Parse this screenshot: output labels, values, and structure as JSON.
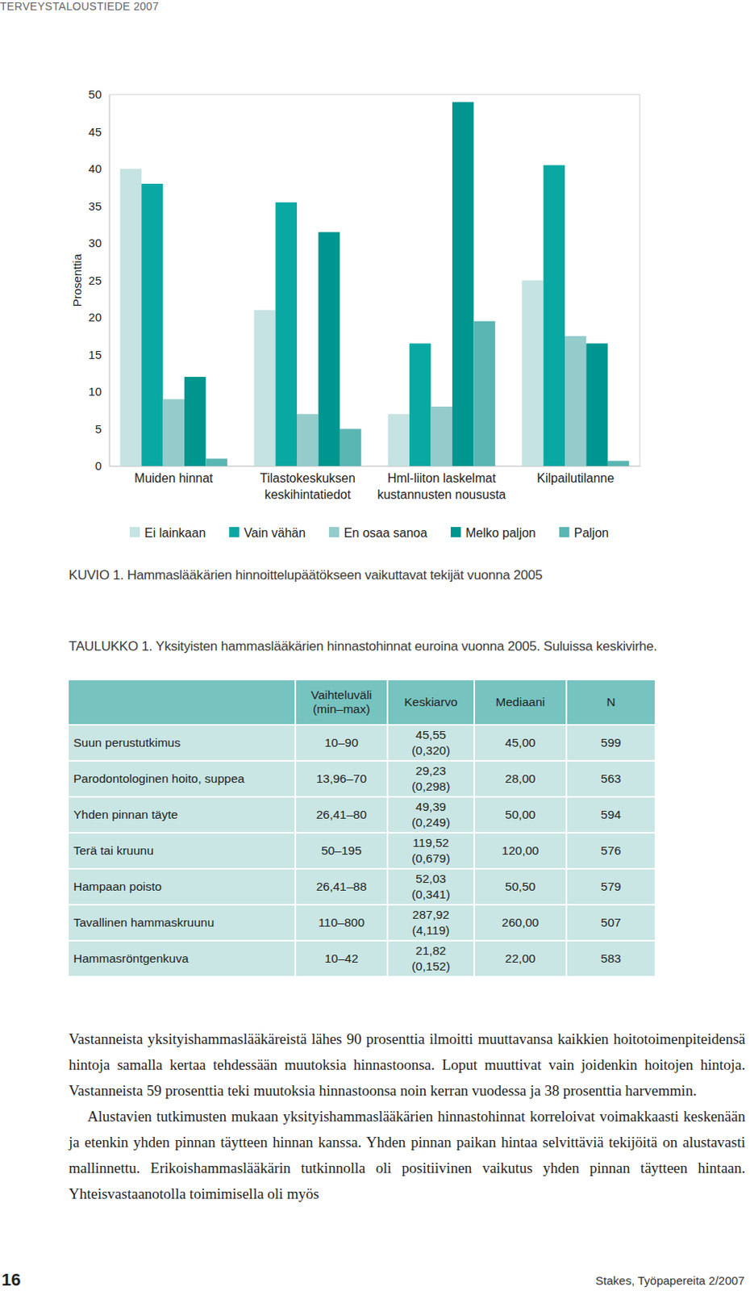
{
  "header": "TERVEYSTALOUSTIEDE 2007",
  "chart_data": {
    "type": "bar",
    "title": "KUVIO 1. Hammaslääkärien hinnoittelupäätökseen vaikuttavat tekijät vuonna 2005",
    "y_label": "Prosenttia",
    "categories": [
      "Muiden hinnat",
      "Tilastokeskuksen\nkeskihintatiedot",
      "Hml-liiton laskelmat\nkustannusten noususta",
      "Kilpailutilanne"
    ],
    "series": [
      {
        "name": "Ei lainkaan",
        "color": "#c5e3e2",
        "values": [
          40,
          21,
          7,
          25
        ]
      },
      {
        "name": "Vain vähän",
        "color": "#0aa8a2",
        "values": [
          38,
          35.5,
          16.5,
          40.5
        ]
      },
      {
        "name": "En osaa sanoa",
        "color": "#93cccb",
        "values": [
          9,
          7,
          8,
          17.5
        ]
      },
      {
        "name": "Melko paljon",
        "color": "#009690",
        "values": [
          12,
          31.5,
          49,
          16.5
        ]
      },
      {
        "name": "Paljon",
        "color": "#5ab6b3",
        "values": [
          1,
          5,
          19.5,
          0.7
        ]
      }
    ],
    "ylim": [
      0,
      50
    ],
    "yticks": [
      0,
      5,
      10,
      15,
      20,
      25,
      30,
      35,
      40,
      45,
      50
    ],
    "grid": false,
    "legend": "bottom"
  },
  "table": {
    "caption": "TAULUKKO 1. Yksityisten hammaslääkärien hinnastohinnat euroina vuonna 2005. Suluissa keskivirhe.",
    "columns": [
      "Vaihteluväli\n(min–max)",
      "Keskiarvo",
      "Mediaani",
      "N"
    ],
    "rows": [
      [
        "Suun perustutkimus",
        "10–90",
        "45,55",
        "(0,320)",
        "45,00",
        "599"
      ],
      [
        "Parodontologinen hoito, suppea",
        "13,96–70",
        "29,23",
        "(0,298)",
        "28,00",
        "563"
      ],
      [
        "Yhden pinnan täyte",
        "26,41–80",
        "49,39",
        "(0,249)",
        "50,00",
        "594"
      ],
      [
        "Terä tai kruunu",
        "50–195",
        "119,52",
        "(0,679)",
        "120,00",
        "576"
      ],
      [
        "Hampaan poisto",
        "26,41–88",
        "52,03",
        "(0,341)",
        "50,50",
        "579"
      ],
      [
        "Tavallinen hammaskruunu",
        "110–800",
        "287,92",
        "(4,119)",
        "260,00",
        "507"
      ],
      [
        "Hammasröntgenkuva",
        "10–42",
        "21,82",
        "(0,152)",
        "22,00",
        "583"
      ]
    ]
  },
  "paragraphs": [
    "Vastanneista yksityishammaslääkäreistä lähes 90 prosenttia ilmoitti muuttavansa kaikkien hoitotoimenpiteidensä hintoja samalla kertaa tehdessään muutoksia hinnastoonsa. Loput muuttivat vain joidenkin hoitojen hintoja. Vastanneista 59 prosenttia teki muutoksia hinnastoonsa noin kerran vuodessa ja 38 prosenttia harvemmin.",
    "Alustavien tutkimusten mukaan yksityishammaslääkärien hinnastohinnat korreloivat voimakkaasti keskenään ja etenkin yhden pinnan täytteen hinnan kanssa. Yhden pinnan paikan hintaa selvittäviä tekijöitä on alustavasti mallinnettu. Erikoishammaslääkärin tutkinnolla oli positiivinen vaikutus yhden pinnan täytteen hintaan. Yhteisvastaanotolla toimimisella oli myös"
  ],
  "footer": {
    "page": "16",
    "source": "Stakes, Työpapereita 2/2007"
  }
}
